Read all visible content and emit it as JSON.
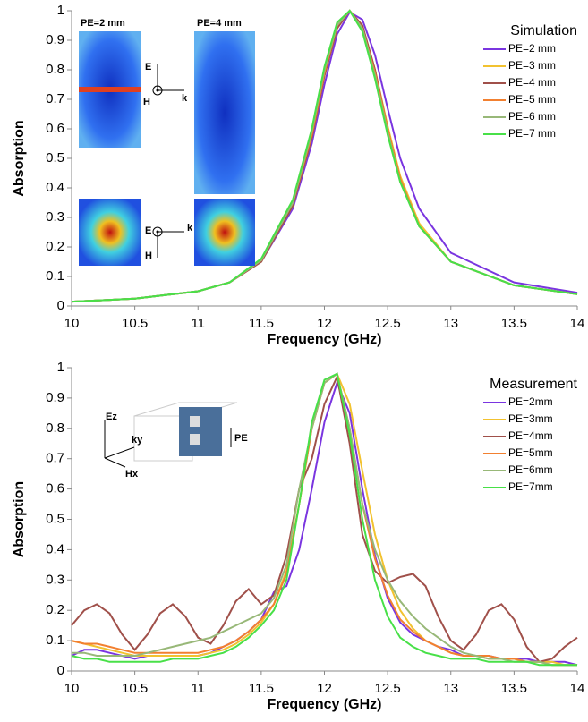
{
  "chart_data": [
    {
      "type": "line",
      "x_label": "Frequency (GHz)",
      "y_label": "Absorption",
      "legend_title": "Simulation",
      "legend": "upper right",
      "grid": false,
      "annotations": [
        "PE=2 mm",
        "PE=4 mm",
        "E",
        "H",
        "k",
        "E",
        "H",
        "k"
      ],
      "xlim": [
        10,
        14
      ],
      "xticks": [
        10,
        10.5,
        11,
        11.5,
        12,
        12.5,
        13,
        13.5,
        14
      ],
      "ylim": [
        0,
        1
      ],
      "yticks": [
        0,
        0.1,
        0.2,
        0.3,
        0.4,
        0.5,
        0.6,
        0.7,
        0.8,
        0.9,
        1
      ],
      "x": [
        10,
        10.5,
        11,
        11.25,
        11.5,
        11.75,
        11.9,
        12,
        12.1,
        12.2,
        12.3,
        12.4,
        12.5,
        12.6,
        12.75,
        13,
        13.5,
        14
      ],
      "series": [
        {
          "name": "PE=2 mm",
          "color": "#7a35e0",
          "values": [
            0.015,
            0.025,
            0.05,
            0.08,
            0.15,
            0.33,
            0.55,
            0.75,
            0.92,
            0.995,
            0.97,
            0.85,
            0.67,
            0.5,
            0.33,
            0.18,
            0.08,
            0.045
          ]
        },
        {
          "name": "PE=3 mm",
          "color": "#f2c230",
          "values": [
            0.015,
            0.025,
            0.05,
            0.08,
            0.15,
            0.34,
            0.57,
            0.78,
            0.94,
            1,
            0.95,
            0.8,
            0.61,
            0.44,
            0.28,
            0.15,
            0.07,
            0.04
          ]
        },
        {
          "name": "PE=4 mm",
          "color": "#a0504a",
          "values": [
            0.015,
            0.025,
            0.05,
            0.08,
            0.15,
            0.34,
            0.57,
            0.78,
            0.94,
            1,
            0.95,
            0.8,
            0.6,
            0.43,
            0.27,
            0.15,
            0.07,
            0.04
          ]
        },
        {
          "name": "PE=5 mm",
          "color": "#f28030",
          "values": [
            0.015,
            0.025,
            0.05,
            0.08,
            0.155,
            0.35,
            0.58,
            0.79,
            0.95,
            1,
            0.94,
            0.79,
            0.6,
            0.43,
            0.27,
            0.15,
            0.07,
            0.04
          ]
        },
        {
          "name": "PE=6 mm",
          "color": "#98b878",
          "values": [
            0.015,
            0.025,
            0.05,
            0.08,
            0.155,
            0.35,
            0.59,
            0.8,
            0.95,
            1,
            0.94,
            0.78,
            0.59,
            0.42,
            0.27,
            0.15,
            0.07,
            0.04
          ]
        },
        {
          "name": "PE=7 mm",
          "color": "#48e048",
          "values": [
            0.015,
            0.025,
            0.05,
            0.08,
            0.16,
            0.36,
            0.6,
            0.81,
            0.96,
            1,
            0.93,
            0.77,
            0.58,
            0.42,
            0.27,
            0.15,
            0.07,
            0.04
          ]
        }
      ]
    },
    {
      "type": "line",
      "x_label": "Frequency (GHz)",
      "y_label": "Absorption",
      "legend_title": "Measurement",
      "legend": "upper right",
      "grid": false,
      "annotations": [
        "Ez",
        "ky",
        "Hx",
        "PE"
      ],
      "xlim": [
        10,
        14
      ],
      "xticks": [
        10,
        10.5,
        11,
        11.5,
        12,
        12.5,
        13,
        13.5,
        14
      ],
      "ylim": [
        0,
        1
      ],
      "yticks": [
        0,
        0.1,
        0.2,
        0.3,
        0.4,
        0.5,
        0.6,
        0.7,
        0.8,
        0.9,
        1
      ],
      "x": [
        10,
        10.1,
        10.2,
        10.3,
        10.4,
        10.5,
        10.6,
        10.7,
        10.8,
        10.9,
        11,
        11.1,
        11.2,
        11.3,
        11.4,
        11.5,
        11.6,
        11.7,
        11.8,
        11.9,
        12,
        12.1,
        12.2,
        12.3,
        12.4,
        12.5,
        12.6,
        12.7,
        12.8,
        12.9,
        13,
        13.1,
        13.2,
        13.3,
        13.4,
        13.5,
        13.6,
        13.7,
        13.8,
        13.9,
        14
      ],
      "series": [
        {
          "name": "PE=2mm",
          "color": "#7a35e0",
          "values": [
            0.05,
            0.07,
            0.07,
            0.06,
            0.05,
            0.04,
            0.05,
            0.05,
            0.05,
            0.05,
            0.05,
            0.06,
            0.08,
            0.1,
            0.13,
            0.17,
            0.26,
            0.28,
            0.4,
            0.6,
            0.82,
            0.95,
            0.85,
            0.6,
            0.38,
            0.24,
            0.16,
            0.12,
            0.1,
            0.08,
            0.07,
            0.05,
            0.05,
            0.05,
            0.04,
            0.04,
            0.04,
            0.03,
            0.03,
            0.03,
            0.02
          ]
        },
        {
          "name": "PE=3mm",
          "color": "#f2c230",
          "values": [
            0.1,
            0.09,
            0.08,
            0.07,
            0.06,
            0.05,
            0.05,
            0.05,
            0.05,
            0.05,
            0.05,
            0.06,
            0.07,
            0.09,
            0.12,
            0.16,
            0.22,
            0.33,
            0.55,
            0.8,
            0.95,
            0.98,
            0.88,
            0.66,
            0.45,
            0.3,
            0.2,
            0.14,
            0.1,
            0.08,
            0.06,
            0.05,
            0.05,
            0.04,
            0.04,
            0.04,
            0.03,
            0.03,
            0.03,
            0.02,
            0.02
          ]
        },
        {
          "name": "PE=4mm",
          "color": "#a0504a",
          "values": [
            0.15,
            0.2,
            0.22,
            0.19,
            0.12,
            0.07,
            0.12,
            0.19,
            0.22,
            0.18,
            0.11,
            0.09,
            0.15,
            0.23,
            0.27,
            0.22,
            0.25,
            0.38,
            0.6,
            0.7,
            0.88,
            0.97,
            0.75,
            0.45,
            0.33,
            0.29,
            0.31,
            0.32,
            0.28,
            0.18,
            0.1,
            0.07,
            0.12,
            0.2,
            0.22,
            0.17,
            0.08,
            0.03,
            0.04,
            0.08,
            0.11
          ]
        },
        {
          "name": "PE=5mm",
          "color": "#f28030",
          "values": [
            0.1,
            0.09,
            0.09,
            0.08,
            0.07,
            0.06,
            0.06,
            0.06,
            0.06,
            0.06,
            0.06,
            0.07,
            0.08,
            0.1,
            0.13,
            0.17,
            0.22,
            0.32,
            0.55,
            0.8,
            0.95,
            0.98,
            0.8,
            0.55,
            0.37,
            0.25,
            0.17,
            0.13,
            0.1,
            0.08,
            0.06,
            0.05,
            0.05,
            0.05,
            0.04,
            0.04,
            0.03,
            0.03,
            0.02,
            0.02,
            0.02
          ]
        },
        {
          "name": "PE=6mm",
          "color": "#98b878",
          "values": [
            0.06,
            0.06,
            0.05,
            0.05,
            0.05,
            0.05,
            0.06,
            0.07,
            0.08,
            0.09,
            0.1,
            0.11,
            0.13,
            0.15,
            0.17,
            0.19,
            0.24,
            0.35,
            0.6,
            0.8,
            0.95,
            0.98,
            0.8,
            0.55,
            0.4,
            0.3,
            0.23,
            0.18,
            0.14,
            0.11,
            0.08,
            0.06,
            0.05,
            0.04,
            0.04,
            0.03,
            0.03,
            0.03,
            0.02,
            0.02,
            0.02
          ]
        },
        {
          "name": "PE=7mm",
          "color": "#48e048",
          "values": [
            0.05,
            0.04,
            0.04,
            0.03,
            0.03,
            0.03,
            0.03,
            0.03,
            0.04,
            0.04,
            0.04,
            0.05,
            0.06,
            0.08,
            0.11,
            0.15,
            0.2,
            0.3,
            0.55,
            0.82,
            0.96,
            0.98,
            0.78,
            0.5,
            0.3,
            0.18,
            0.11,
            0.08,
            0.06,
            0.05,
            0.04,
            0.04,
            0.04,
            0.03,
            0.03,
            0.03,
            0.03,
            0.02,
            0.02,
            0.02,
            0.02
          ]
        }
      ]
    }
  ]
}
